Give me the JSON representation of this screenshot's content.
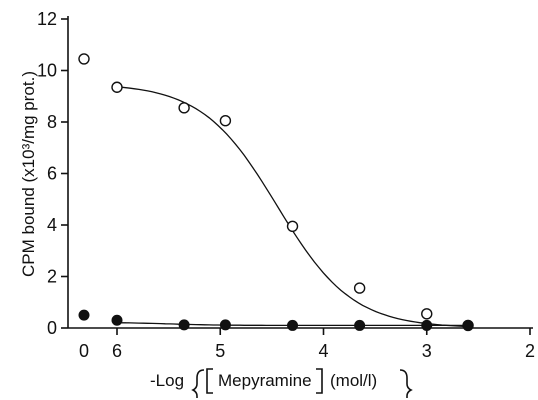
{
  "chart_data": {
    "type": "scatter",
    "title": "",
    "xlabel_prefix": "-Log",
    "xlabel_inner": "Mepyramine",
    "xlabel_unit": "(mol/l)",
    "ylabel": "CPM bound (x10³/mg prot.)",
    "x_ticks": [
      "0",
      "6",
      "5",
      "4",
      "3",
      "2"
    ],
    "y_ticks": [
      "0",
      "2",
      "4",
      "6",
      "8",
      "10",
      "12"
    ],
    "xlim": [
      6,
      2
    ],
    "ylim": [
      0,
      12
    ],
    "control_point": {
      "x_label": "0",
      "open": 10.45,
      "filled": 0.5
    },
    "series": [
      {
        "marker": "open-circle",
        "x": [
          6.0,
          5.35,
          4.95,
          4.3,
          3.65,
          3.0,
          2.6
        ],
        "y": [
          9.35,
          8.55,
          8.05,
          3.95,
          1.55,
          0.55,
          0.1
        ],
        "fit": {
          "top": 9.5,
          "bottom": 0.0,
          "log_ic50": 4.45,
          "hill_factor": 2.75
        }
      },
      {
        "marker": "filled-circle",
        "x": [
          6.0,
          5.35,
          4.95,
          4.3,
          3.65,
          3.0,
          2.6
        ],
        "y": [
          0.3,
          0.12,
          0.12,
          0.1,
          0.1,
          0.1,
          0.1
        ],
        "fit": {
          "top": 0.22,
          "bottom": 0.1,
          "log_ic50": 5.5,
          "hill_factor": 4
        }
      }
    ],
    "grid": false,
    "legend": "none"
  }
}
